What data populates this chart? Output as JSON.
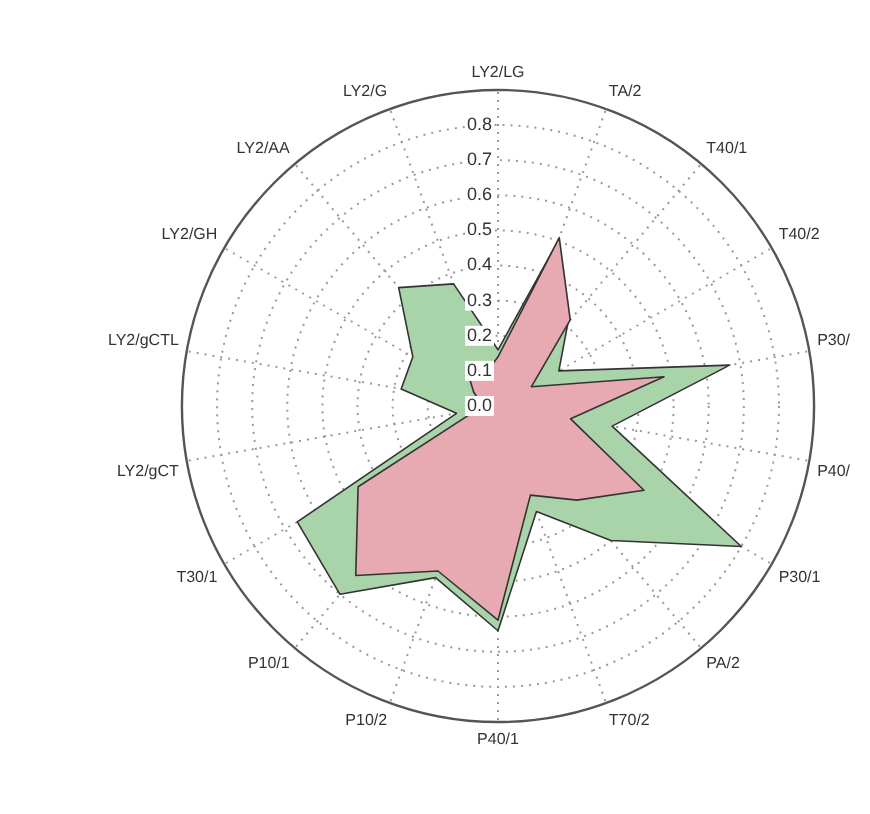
{
  "chart_data": {
    "type": "radar",
    "categories": [
      "LY2/LG",
      "TA/2",
      "T40/1",
      "T40/2",
      "P30/",
      "P40/",
      "P30/1",
      "PA/2",
      "T70/2",
      "P40/1",
      "P10/2",
      "P10/1",
      "T30/1",
      "LY2/gCT",
      "LY2/gCTL",
      "LY2/GH",
      "LY2/AA",
      "LY2/G"
    ],
    "series": [
      {
        "color": "#a9d3a9",
        "values": [
          0.16,
          0.5,
          0.31,
          0.2,
          0.67,
          0.33,
          0.8,
          0.5,
          0.32,
          0.64,
          0.52,
          0.7,
          0.66,
          0.12,
          0.28,
          0.28,
          0.44,
          0.37
        ]
      },
      {
        "color": "#e8aab2",
        "values": [
          0.14,
          0.51,
          0.32,
          0.11,
          0.48,
          0.21,
          0.48,
          0.35,
          0.27,
          0.61,
          0.5,
          0.63,
          0.46,
          0.06,
          0.05,
          0.08,
          0.14,
          0.1
        ]
      }
    ],
    "ylim": [
      0,
      0.9
    ],
    "yticks": [
      {
        "value": 0,
        "label": "0.0"
      },
      0.1,
      0.2,
      0.3,
      0.4,
      0.5,
      0.6,
      0.7,
      0.8
    ],
    "grid": true,
    "marker": "none",
    "line_style": "solid",
    "legend": false
  }
}
